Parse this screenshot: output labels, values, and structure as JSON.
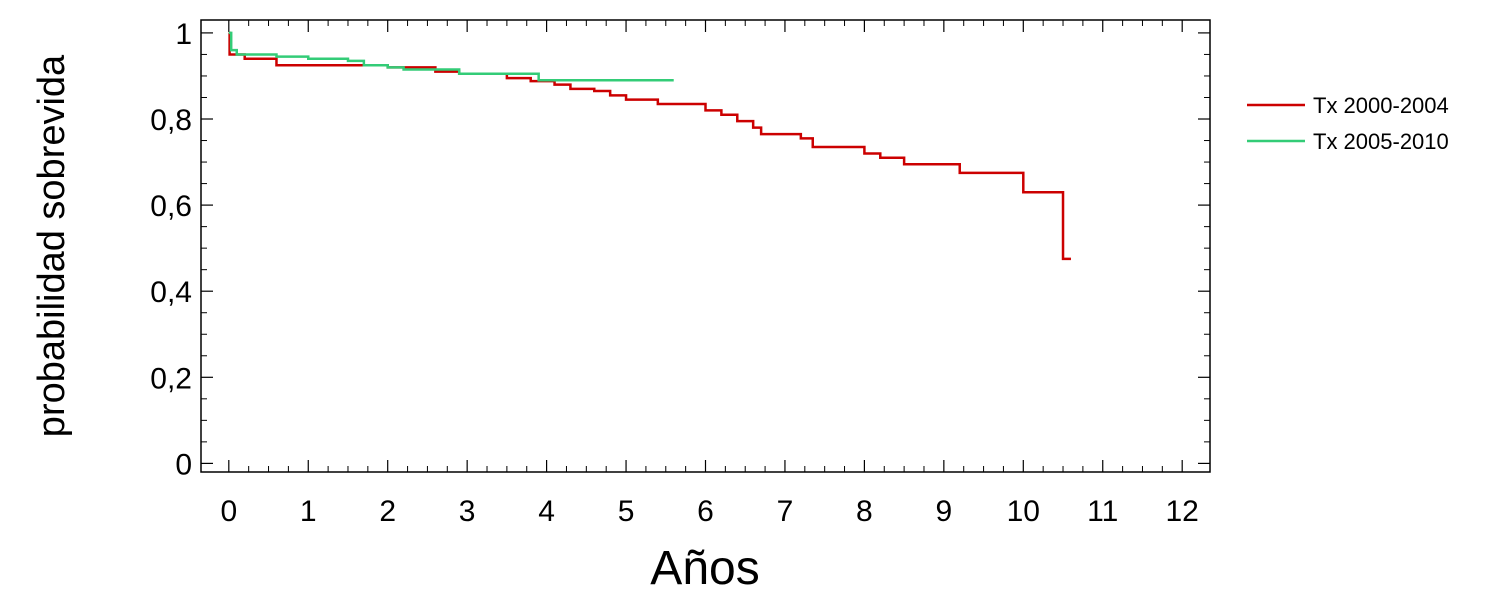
{
  "chart_data": {
    "type": "line",
    "xlabel": "Años",
    "ylabel": "probabilidad sobrevida",
    "xlim": [
      -0.35,
      12.35
    ],
    "ylim": [
      -0.02,
      1.03
    ],
    "x_ticks": [
      0,
      1,
      2,
      3,
      4,
      5,
      6,
      7,
      8,
      9,
      10,
      11,
      12
    ],
    "y_ticks": [
      0,
      0.2,
      0.4,
      0.6,
      0.8,
      1
    ],
    "x_tick_labels": [
      "0",
      "1",
      "2",
      "3",
      "4",
      "5",
      "6",
      "7",
      "8",
      "9",
      "10",
      "11",
      "12"
    ],
    "y_tick_labels": [
      "0",
      "0,2",
      "0,4",
      "0,6",
      "0,8",
      "1"
    ],
    "grid": false,
    "legend_position": "right",
    "series": [
      {
        "name": "Tx 2000-2004",
        "color": "#cc0000",
        "step": true,
        "points": [
          [
            0,
            1.0
          ],
          [
            0.01,
            0.95
          ],
          [
            0.2,
            0.94
          ],
          [
            0.6,
            0.925
          ],
          [
            1.5,
            0.925
          ],
          [
            2.0,
            0.92
          ],
          [
            2.6,
            0.91
          ],
          [
            2.9,
            0.905
          ],
          [
            3.5,
            0.895
          ],
          [
            3.8,
            0.888
          ],
          [
            4.1,
            0.88
          ],
          [
            4.3,
            0.87
          ],
          [
            4.6,
            0.865
          ],
          [
            4.8,
            0.855
          ],
          [
            5.0,
            0.845
          ],
          [
            5.4,
            0.835
          ],
          [
            6.0,
            0.82
          ],
          [
            6.2,
            0.81
          ],
          [
            6.4,
            0.795
          ],
          [
            6.6,
            0.78
          ],
          [
            6.7,
            0.765
          ],
          [
            7.2,
            0.755
          ],
          [
            7.35,
            0.735
          ],
          [
            8.0,
            0.72
          ],
          [
            8.2,
            0.71
          ],
          [
            8.5,
            0.695
          ],
          [
            9.2,
            0.675
          ],
          [
            10.0,
            0.63
          ],
          [
            10.5,
            0.475
          ],
          [
            10.6,
            0.475
          ]
        ]
      },
      {
        "name": "Tx 2005-2010",
        "color": "#33cc77",
        "step": true,
        "points": [
          [
            0,
            1.0
          ],
          [
            0.03,
            0.96
          ],
          [
            0.1,
            0.95
          ],
          [
            0.6,
            0.945
          ],
          [
            1.0,
            0.94
          ],
          [
            1.5,
            0.935
          ],
          [
            1.7,
            0.925
          ],
          [
            2.0,
            0.92
          ],
          [
            2.2,
            0.915
          ],
          [
            2.9,
            0.905
          ],
          [
            3.9,
            0.89
          ],
          [
            5.6,
            0.89
          ]
        ]
      }
    ]
  }
}
